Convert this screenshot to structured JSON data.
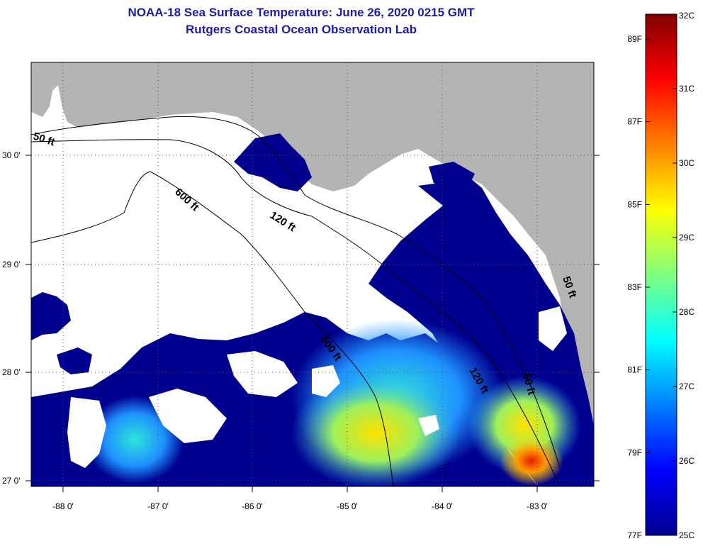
{
  "title_line1": "NOAA-18 Sea Surface Temperature:  June 26, 2020 0215 GMT",
  "title_line2": "Rutgers Coastal Ocean Observation Lab",
  "map": {
    "lon_ticks": [
      "-88 0'",
      "-87 0'",
      "-86 0'",
      "-85 0'",
      "-84 0'",
      "-83 0'"
    ],
    "lat_ticks": [
      "30 0'",
      "29 0'",
      "28 0'",
      "27 0'"
    ],
    "isobath_labels": [
      "50 ft",
      "600 ft",
      "120 ft",
      "600 ft",
      "120 ft",
      "50 ft",
      "50 ft"
    ],
    "colors": {
      "land": "#b4b4b4",
      "cloud": "#ffffff",
      "water_low": "#00008f"
    }
  },
  "colorbar": {
    "celsius_labels": [
      "32C",
      "31C",
      "30C",
      "29C",
      "28C",
      "27C",
      "26C",
      "25C"
    ],
    "fahrenheit_labels": [
      "89F",
      "87F",
      "85F",
      "83F",
      "81F",
      "79F",
      "77F"
    ],
    "celsius_values": [
      32,
      31,
      30,
      29,
      28,
      27,
      26,
      25
    ],
    "fahrenheit_values": [
      89,
      87,
      85,
      83,
      81,
      79,
      77
    ]
  }
}
